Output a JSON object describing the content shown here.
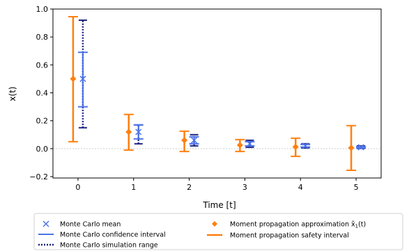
{
  "chart_data": {
    "type": "errorbar",
    "xlabel": "Time [t]",
    "ylabel": "x(t)",
    "xlim": [
      -0.45,
      5.45
    ],
    "ylim": [
      -0.21,
      1.0
    ],
    "xticks": [
      0,
      1,
      2,
      3,
      4,
      5
    ],
    "yticks": [
      -0.2,
      0.0,
      0.2,
      0.4,
      0.6,
      0.8,
      1.0
    ],
    "ytick_labels": [
      "−0.2",
      "0.0",
      "0.2",
      "0.4",
      "0.6",
      "0.8",
      "1.0"
    ],
    "zero_line": true,
    "legend_placement": "below",
    "colors": {
      "moment": "#ff7f0e",
      "mc_ci": "#4b72e8",
      "mc_range": "#1a237e",
      "mc_mean": "#4b72e8"
    },
    "series": [
      {
        "name": "Moment propagation approximation x̃₁(t)",
        "kind": "point",
        "x": [
          0,
          1,
          2,
          3,
          4,
          5
        ],
        "values": [
          0.5,
          0.12,
          0.06,
          0.025,
          0.013,
          0.006
        ]
      },
      {
        "name": "Moment propagation safety interval",
        "kind": "interval",
        "x": [
          0,
          1,
          2,
          3,
          4,
          5
        ],
        "low": [
          0.05,
          -0.01,
          -0.02,
          -0.02,
          -0.055,
          -0.155
        ],
        "high": [
          0.945,
          0.245,
          0.125,
          0.065,
          0.075,
          0.165
        ]
      },
      {
        "name": "Monte Carlo mean",
        "kind": "point",
        "x": [
          0,
          1,
          2,
          3,
          4,
          5
        ],
        "values": [
          0.5,
          0.12,
          0.06,
          0.035,
          0.02,
          0.01
        ]
      },
      {
        "name": "Monte Carlo confidence interval",
        "kind": "interval",
        "x": [
          0,
          1,
          2,
          3,
          4,
          5
        ],
        "low": [
          0.3,
          0.07,
          0.035,
          0.02,
          0.012,
          0.005
        ],
        "high": [
          0.69,
          0.17,
          0.085,
          0.05,
          0.03,
          0.015
        ]
      },
      {
        "name": "Monte Carlo simulation range",
        "kind": "interval",
        "x": [
          0,
          1,
          2,
          3,
          4,
          5
        ],
        "low": [
          0.15,
          0.035,
          0.02,
          0.01,
          0.005,
          0.002
        ],
        "high": [
          0.92,
          0.17,
          0.1,
          0.06,
          0.035,
          0.02
        ]
      }
    ],
    "legend": {
      "mc_mean": "Monte Carlo mean",
      "mc_ci": "Monte Carlo confidence interval",
      "mc_range": "Monte Carlo simulation range",
      "moment_point": "Moment propagation approximation",
      "moment_interval": "Moment propagation safety interval"
    }
  }
}
